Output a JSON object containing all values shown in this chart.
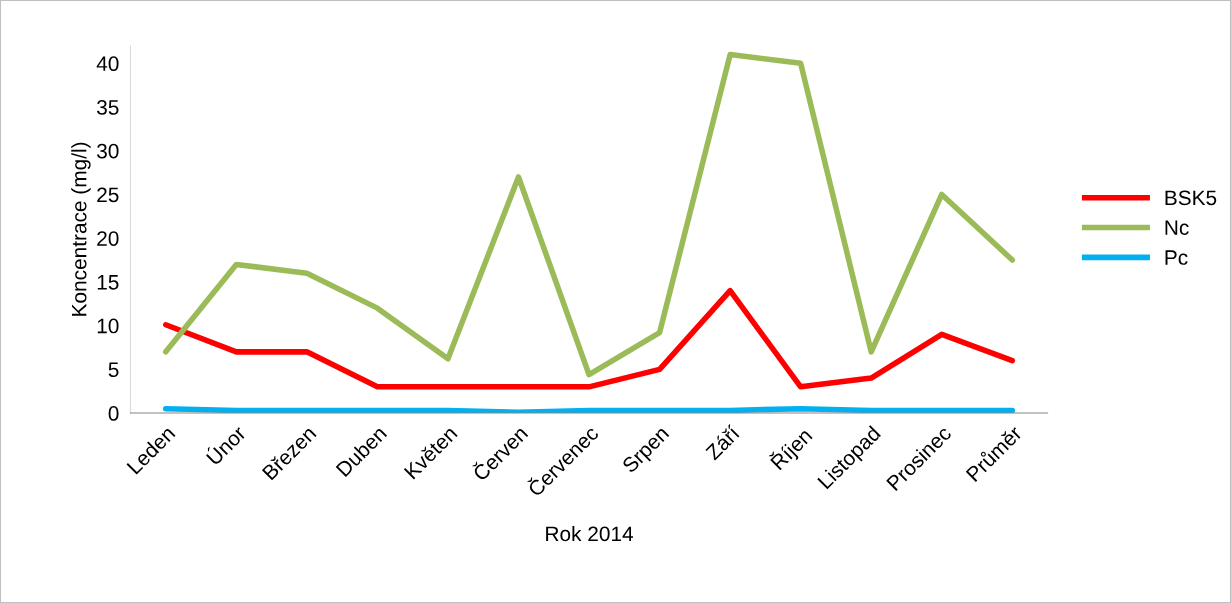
{
  "chart_data": {
    "type": "line",
    "xlabel": "Rok 2014",
    "ylabel": "Koncentrace (mg/l)",
    "categories": [
      "Leden",
      "Únor",
      "Březen",
      "Duben",
      "Květen",
      "Červen",
      "Červenec",
      "Srpen",
      "Září",
      "Říjen",
      "Listopad",
      "Prosinec",
      "Průměr"
    ],
    "series": [
      {
        "name": "BSK5",
        "color": "#ff0000",
        "values": [
          10.1,
          7,
          7,
          3,
          3,
          3,
          3,
          5,
          14,
          3,
          4,
          9,
          6
        ]
      },
      {
        "name": "Nc",
        "color": "#9bbb59",
        "values": [
          7,
          17,
          16,
          12,
          6.2,
          27,
          4.4,
          9.2,
          41,
          40,
          7,
          25,
          17.5
        ]
      },
      {
        "name": "Pc",
        "color": "#00b0f0",
        "values": [
          0.5,
          0.3,
          0.3,
          0.3,
          0.3,
          0.1,
          0.3,
          0.3,
          0.3,
          0.5,
          0.3,
          0.3,
          0.3
        ]
      }
    ],
    "ylim": [
      0,
      42
    ],
    "yticks": [
      0,
      5,
      10,
      15,
      20,
      25,
      30,
      35,
      40
    ],
    "grid": false,
    "legend": "right",
    "marker": "none",
    "line_style": "solid"
  }
}
